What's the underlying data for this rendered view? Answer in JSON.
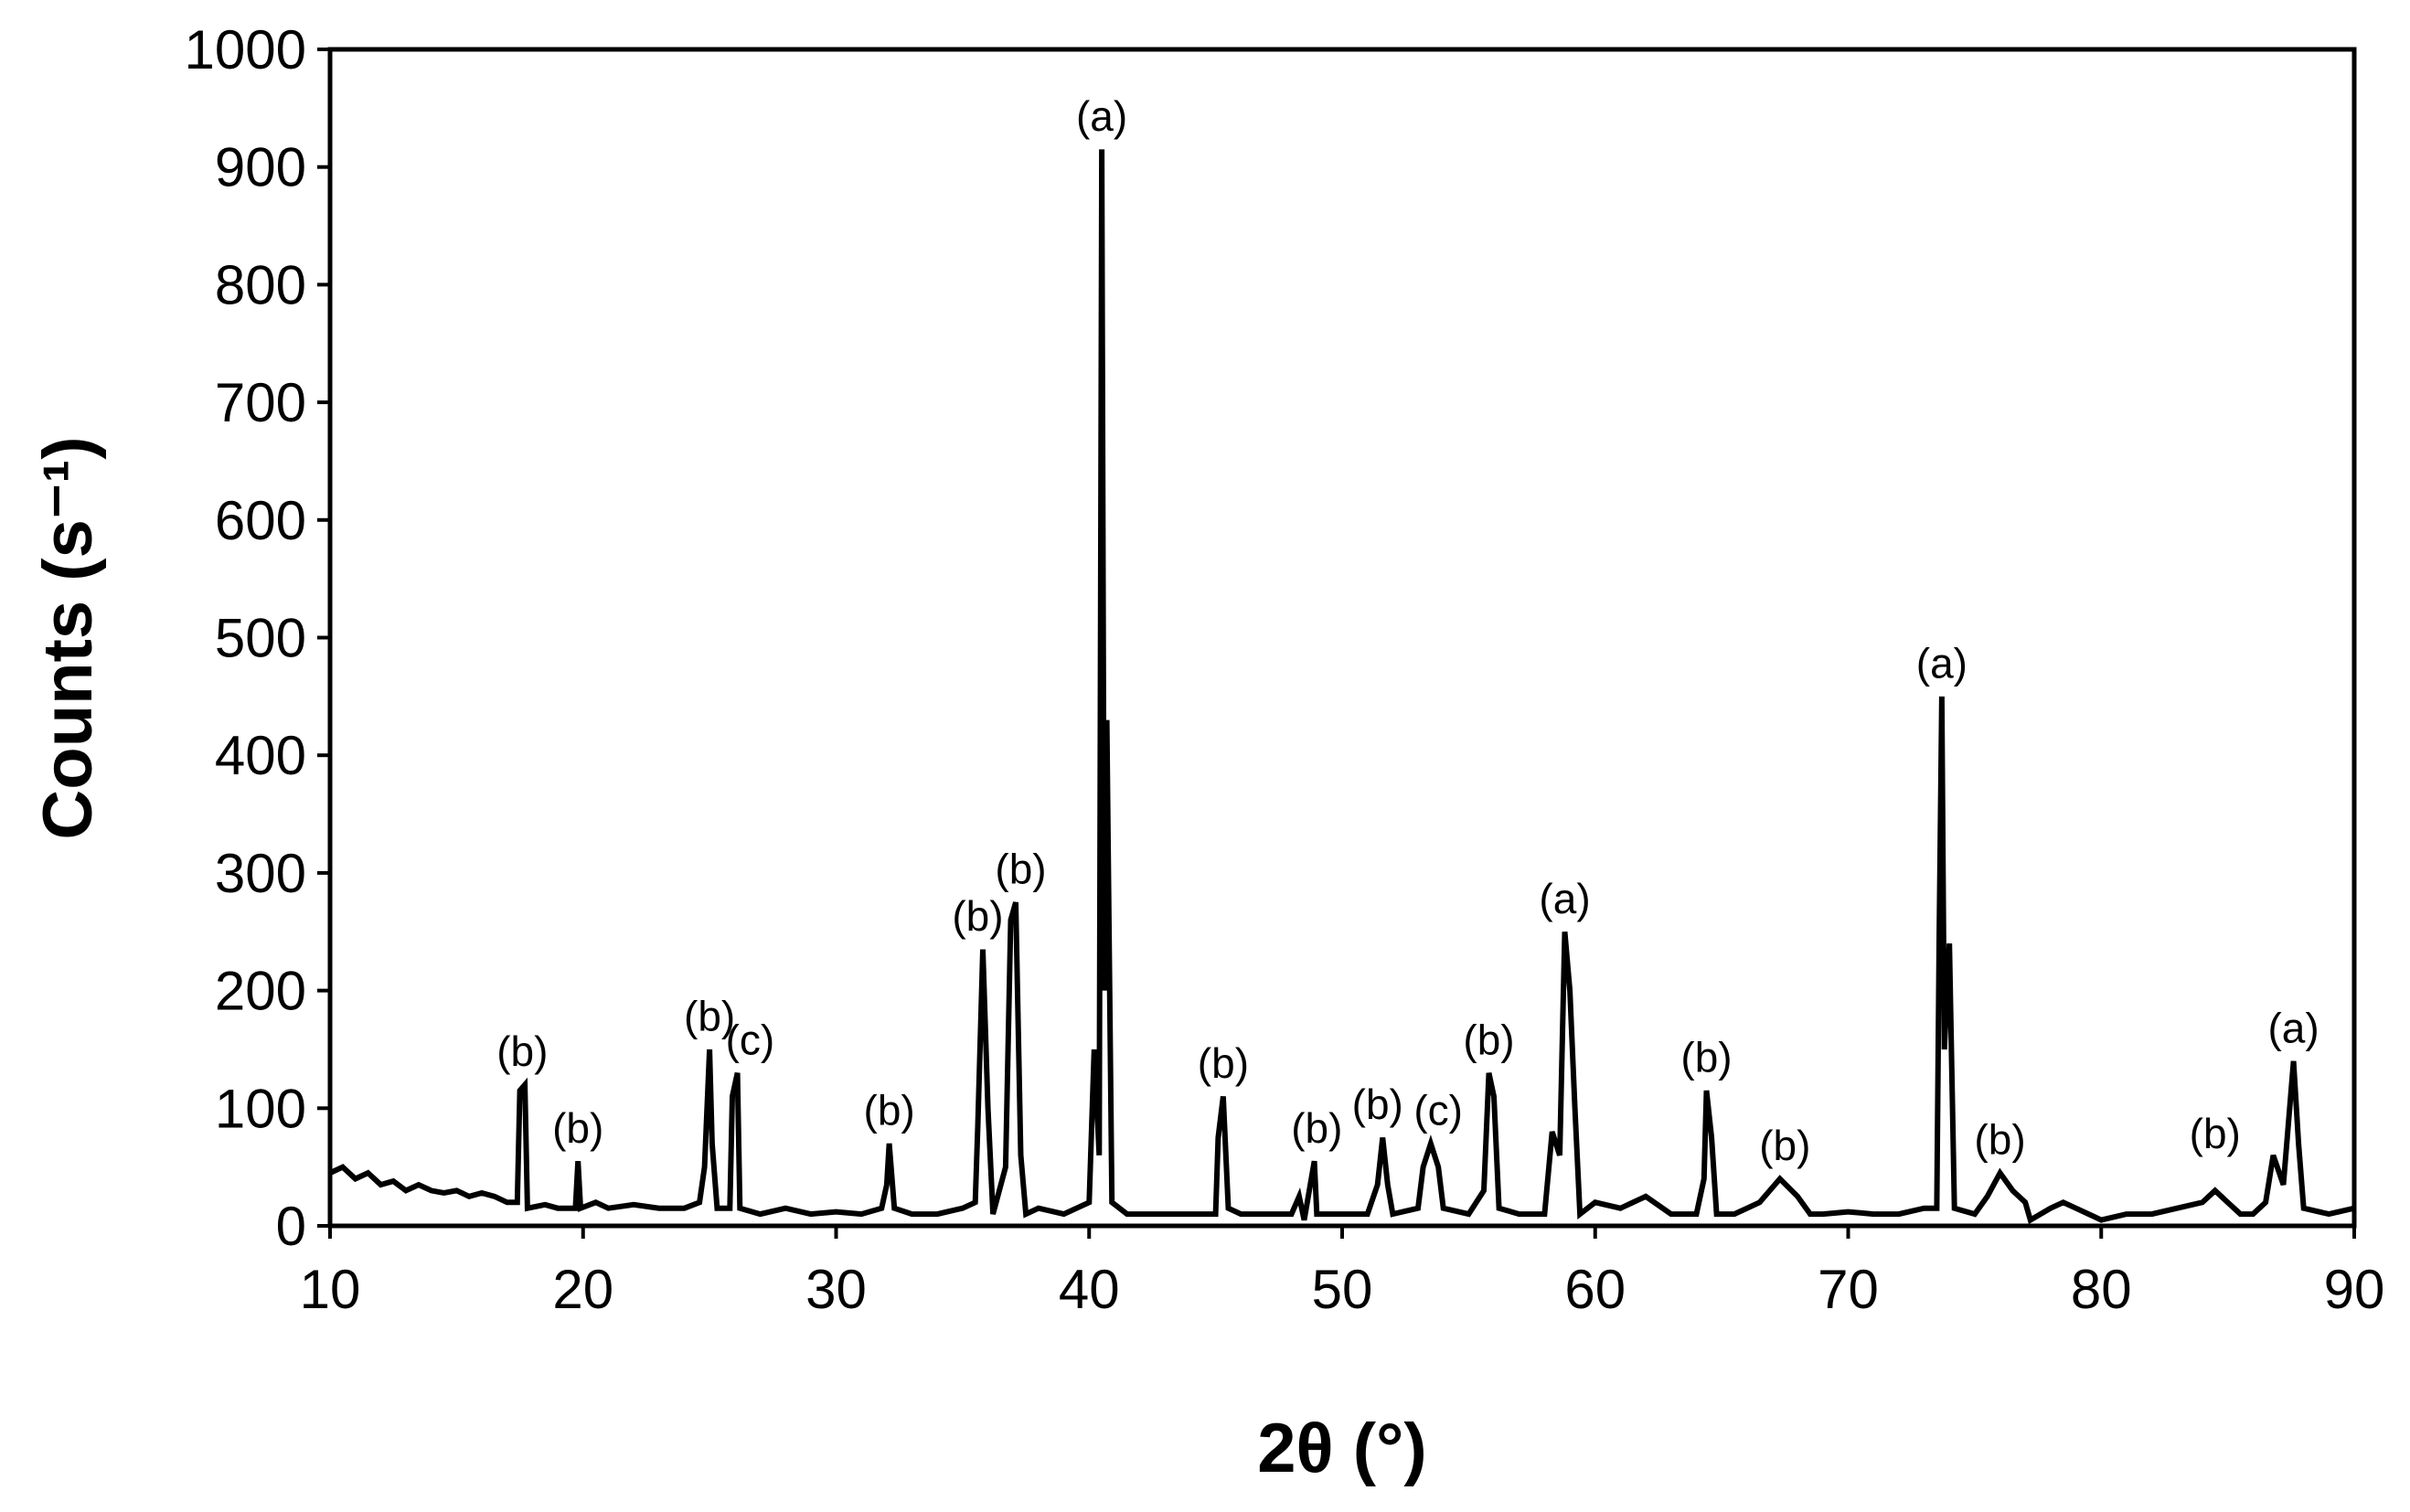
{
  "chart_data": {
    "type": "line",
    "x_label": "2θ (°)",
    "y_label": "Counts (s⁻¹)",
    "xlim": [
      10,
      90
    ],
    "xticks": [
      10,
      20,
      30,
      40,
      50,
      60,
      70,
      80,
      90
    ],
    "ylim": [
      0,
      1000
    ],
    "yticks": [
      0,
      100,
      200,
      300,
      400,
      500,
      600,
      700,
      800,
      900,
      1000
    ],
    "grid": false,
    "series": [
      {
        "name": null,
        "color": "#000000",
        "x": [
          10,
          10.5,
          11,
          11.5,
          12,
          12.5,
          13,
          13.5,
          14,
          14.5,
          15,
          15.5,
          16,
          16.5,
          17,
          17.4,
          17.5,
          17.7,
          17.8,
          18.5,
          19,
          19.7,
          19.8,
          19.9,
          20.5,
          21,
          22,
          23,
          24,
          24.6,
          24.8,
          25,
          25.1,
          25.3,
          25.8,
          25.9,
          26.1,
          26.2,
          27,
          28,
          29,
          30,
          31,
          31.8,
          32,
          32.1,
          32.3,
          33,
          34,
          35,
          35.5,
          35.6,
          35.8,
          36,
          36.2,
          36.7,
          36.9,
          37.1,
          37.3,
          37.5,
          38,
          39,
          40,
          40.2,
          40.4,
          40.5,
          40.6,
          40.7,
          40.9,
          41.5,
          42,
          43,
          44,
          45,
          45.1,
          45.3,
          45.5,
          46,
          47,
          48,
          48.3,
          48.5,
          48.9,
          49,
          50,
          51,
          51.4,
          51.6,
          51.8,
          52,
          53,
          53.2,
          53.5,
          53.8,
          54,
          55,
          55.6,
          55.8,
          56,
          56.2,
          57,
          58,
          58.3,
          58.6,
          58.8,
          59,
          59.2,
          59.4,
          60,
          61,
          62,
          63,
          64,
          64.3,
          64.4,
          64.6,
          64.8,
          65.5,
          66.5,
          67.3,
          68,
          68.5,
          69,
          70,
          71,
          72,
          73,
          73.5,
          73.6,
          73.7,
          73.8,
          74,
          74.2,
          75,
          75.5,
          76,
          76.5,
          77,
          77.2,
          78,
          78.5,
          79,
          80,
          81,
          82,
          83,
          84,
          84.5,
          85,
          85.5,
          86,
          86.5,
          86.8,
          87.2,
          87.6,
          87.8,
          88,
          89,
          90
        ],
        "values": [
          45,
          50,
          40,
          45,
          35,
          38,
          30,
          35,
          30,
          28,
          30,
          25,
          28,
          25,
          20,
          20,
          115,
          120,
          15,
          18,
          15,
          15,
          55,
          15,
          20,
          15,
          18,
          15,
          15,
          20,
          50,
          150,
          70,
          15,
          15,
          110,
          130,
          15,
          10,
          15,
          10,
          12,
          10,
          15,
          35,
          70,
          15,
          10,
          10,
          15,
          20,
          85,
          235,
          100,
          10,
          50,
          260,
          275,
          60,
          10,
          15,
          10,
          20,
          150,
          60,
          915,
          200,
          430,
          20,
          10,
          10,
          10,
          10,
          10,
          75,
          110,
          15,
          10,
          10,
          10,
          25,
          5,
          55,
          10,
          10,
          10,
          35,
          75,
          35,
          10,
          15,
          50,
          70,
          50,
          15,
          10,
          30,
          130,
          110,
          15,
          10,
          10,
          80,
          60,
          250,
          200,
          100,
          10,
          20,
          15,
          25,
          10,
          10,
          40,
          115,
          75,
          10,
          10,
          20,
          40,
          25,
          10,
          10,
          12,
          10,
          10,
          15,
          15,
          250,
          450,
          150,
          240,
          15,
          10,
          25,
          45,
          30,
          20,
          5,
          15,
          20,
          15,
          5,
          10,
          10,
          15,
          20,
          30,
          20,
          10,
          10,
          20,
          60,
          35,
          140,
          70,
          15,
          10,
          15
        ]
      }
    ],
    "annotations": [
      {
        "text": "(b)",
        "x": 17.6,
        "y": 125
      },
      {
        "text": "(b)",
        "x": 19.8,
        "y": 60
      },
      {
        "text": "(b)",
        "x": 25,
        "y": 155
      },
      {
        "text": "(c)",
        "x": 26.6,
        "y": 135
      },
      {
        "text": "(b)",
        "x": 32.1,
        "y": 75
      },
      {
        "text": "(b)",
        "x": 35.6,
        "y": 240
      },
      {
        "text": "(b)",
        "x": 37.3,
        "y": 280
      },
      {
        "text": "(a)",
        "x": 40.5,
        "y": 920
      },
      {
        "text": "(b)",
        "x": 45.3,
        "y": 115
      },
      {
        "text": "(b)",
        "x": 49,
        "y": 60
      },
      {
        "text": "(b)",
        "x": 51.4,
        "y": 80
      },
      {
        "text": "(c)",
        "x": 53.8,
        "y": 75
      },
      {
        "text": "(b)",
        "x": 55.8,
        "y": 135
      },
      {
        "text": "(a)",
        "x": 58.8,
        "y": 255
      },
      {
        "text": "(b)",
        "x": 64.4,
        "y": 120
      },
      {
        "text": "(b)",
        "x": 67.5,
        "y": 45
      },
      {
        "text": "(a)",
        "x": 73.7,
        "y": 455
      },
      {
        "text": "(b)",
        "x": 76,
        "y": 50
      },
      {
        "text": "(b)",
        "x": 84.5,
        "y": 55
      },
      {
        "text": "(a)",
        "x": 87.6,
        "y": 145
      }
    ]
  }
}
